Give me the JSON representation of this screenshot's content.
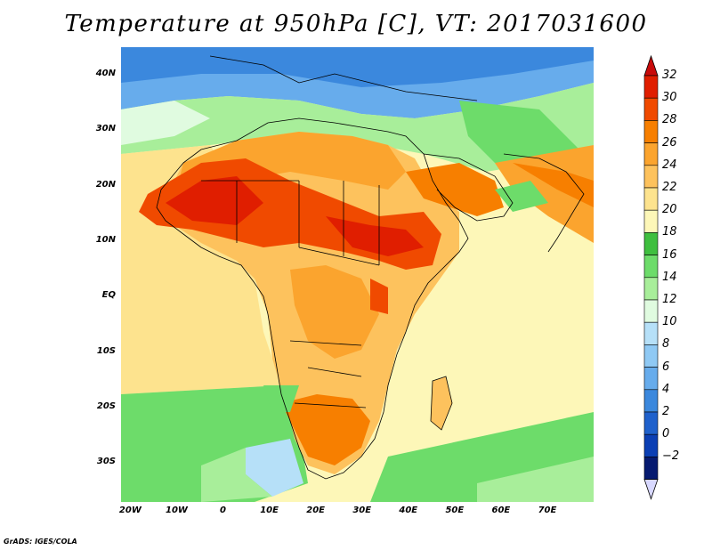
{
  "title": "Temperature at 950hPa [C], VT: 2017031600",
  "credit": "GrADS: IGES/COLA",
  "map": {
    "lon_range": [
      -22,
      80
    ],
    "lat_range": [
      -37,
      45
    ],
    "lat_labels": [
      {
        "lat": 40,
        "text": "40N"
      },
      {
        "lat": 30,
        "text": "30N"
      },
      {
        "lat": 20,
        "text": "20N"
      },
      {
        "lat": 10,
        "text": "10N"
      },
      {
        "lat": 0,
        "text": "EQ"
      },
      {
        "lat": -10,
        "text": "10S"
      },
      {
        "lat": -20,
        "text": "20S"
      },
      {
        "lat": -30,
        "text": "30S"
      }
    ],
    "lon_labels": [
      {
        "lon": -20,
        "text": "20W"
      },
      {
        "lon": -10,
        "text": "10W"
      },
      {
        "lon": 0,
        "text": "0"
      },
      {
        "lon": 10,
        "text": "10E"
      },
      {
        "lon": 20,
        "text": "20E"
      },
      {
        "lon": 30,
        "text": "30E"
      },
      {
        "lon": 40,
        "text": "40E"
      },
      {
        "lon": 50,
        "text": "50E"
      },
      {
        "lon": 60,
        "text": "60E"
      },
      {
        "lon": 70,
        "text": "70E"
      }
    ]
  },
  "colorbar": {
    "levels": [
      "32",
      "30",
      "28",
      "26",
      "24",
      "22",
      "20",
      "18",
      "16",
      "14",
      "12",
      "10",
      "8",
      "6",
      "4",
      "2",
      "0",
      "−2"
    ],
    "colors": [
      "#e01e00",
      "#f04a00",
      "#f77f00",
      "#fba42e",
      "#fdc25d",
      "#fde38e",
      "#fdf7b8",
      "#3fbf3f",
      "#6ddc6a",
      "#a8ee9a",
      "#e0fbe0",
      "#b6e0f8",
      "#8fc9f4",
      "#67acec",
      "#3b88dd",
      "#1f61cc",
      "#0b3fb4",
      "#061a70"
    ],
    "top_arrow_color": "#c80a0a",
    "bottom_arrow_color": "#d8d8ff"
  },
  "fields": {
    "ocean_atlantic_south": "#6ddc6a",
    "ocean_atlantic_tropical": "#fde38e",
    "ocean_indian": "#fdf7b8",
    "mediterranean": "#3b88dd",
    "sahel_hot": "#e01e00",
    "sahara": "#fba42e",
    "southern_africa": "#f77f00",
    "cold_patch": "#b6e0f8"
  }
}
